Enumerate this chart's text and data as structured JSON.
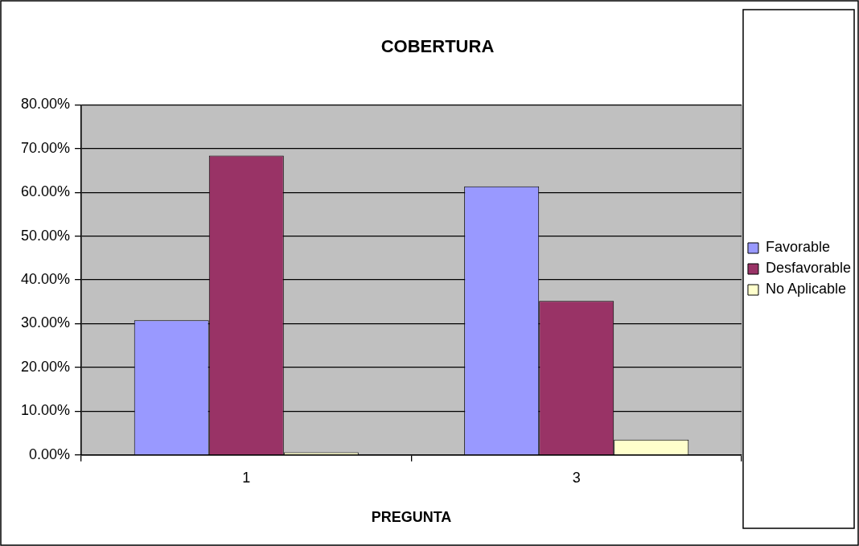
{
  "chart_data": {
    "type": "bar",
    "title": "COBERTURA",
    "xlabel": "PREGUNTA",
    "categories": [
      "1",
      "3"
    ],
    "series": [
      {
        "name": "Favorable",
        "color": "#9999ff",
        "values": [
          30.8,
          61.4
        ]
      },
      {
        "name": "Desfavorable",
        "color": "#993366",
        "values": [
          68.4,
          35.2
        ]
      },
      {
        "name": "No Aplicable",
        "color": "#ffffcc",
        "values": [
          0.6,
          3.5
        ]
      }
    ],
    "ylim": [
      0,
      80
    ],
    "yticks": [
      {
        "value": 0,
        "label": "0.00%"
      },
      {
        "value": 10,
        "label": "10.00%"
      },
      {
        "value": 20,
        "label": "20.00%"
      },
      {
        "value": 30,
        "label": "30.00%"
      },
      {
        "value": 40,
        "label": "40.00%"
      },
      {
        "value": 50,
        "label": "50.00%"
      },
      {
        "value": 60,
        "label": "60.00%"
      },
      {
        "value": 70,
        "label": "70.00%"
      },
      {
        "value": 80,
        "label": "80.00%"
      }
    ],
    "grid": "y",
    "legend": "right"
  }
}
